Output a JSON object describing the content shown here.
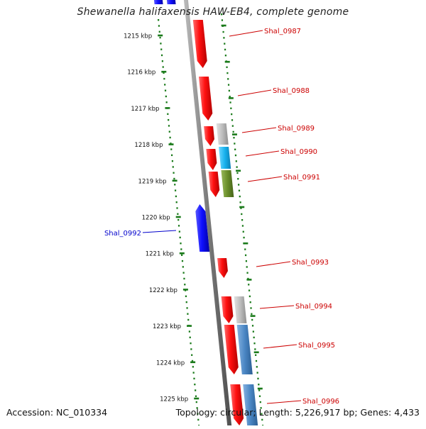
{
  "title": "Shewanella halifaxensis HAW-EB4, complete genome",
  "accession": "Accession: NC_010334",
  "summary": "Topology: circular; Length: 5,226,917 bp; Genes: 4,433",
  "colors": {
    "backbone": "#7f7f7f",
    "scale_dots": "#1a7a1a",
    "forward_gene": "#ff0000",
    "reverse_gene": "#0000ff",
    "label_forward": "#cc0000",
    "label_reverse": "#0000cc",
    "gray_feature": "#b4b4b4",
    "cyan_feature": "#1ab2ee",
    "olive_feature": "#6a8e2a",
    "steelblue_feature": "#4a86c4"
  },
  "scale_ticks": [
    {
      "label": "1215 kbp"
    },
    {
      "label": "1216 kbp"
    },
    {
      "label": "1217 kbp"
    },
    {
      "label": "1218 kbp"
    },
    {
      "label": "1219 kbp"
    },
    {
      "label": "1220 kbp"
    },
    {
      "label": "1221 kbp"
    },
    {
      "label": "1222 kbp"
    },
    {
      "label": "1223 kbp"
    },
    {
      "label": "1224 kbp"
    },
    {
      "label": "1225 kbp"
    }
  ],
  "gene_labels": [
    {
      "name": "Shal_0987",
      "strand": "forward"
    },
    {
      "name": "Shal_0988",
      "strand": "forward"
    },
    {
      "name": "Shal_0989",
      "strand": "forward"
    },
    {
      "name": "Shal_0990",
      "strand": "forward"
    },
    {
      "name": "Shal_0991",
      "strand": "forward"
    },
    {
      "name": "Shal_0992",
      "strand": "reverse"
    },
    {
      "name": "Shal_0993",
      "strand": "forward"
    },
    {
      "name": "Shal_0994",
      "strand": "forward"
    },
    {
      "name": "Shal_0995",
      "strand": "forward"
    },
    {
      "name": "Shal_0996",
      "strand": "forward"
    }
  ]
}
